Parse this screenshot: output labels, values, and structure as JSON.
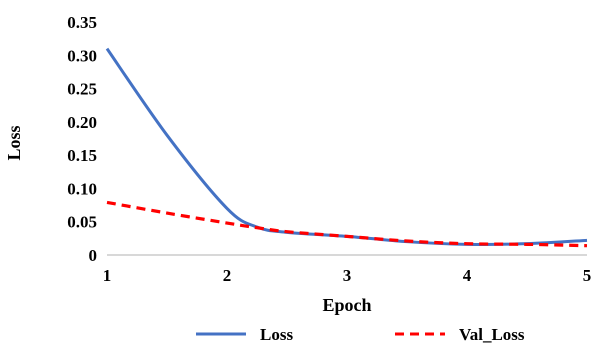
{
  "chart_data": {
    "type": "line",
    "title": "",
    "xlabel": "Epoch",
    "ylabel": "Loss",
    "x": [
      1,
      1.5,
      2,
      2.25,
      2.5,
      3,
      3.5,
      4,
      4.5,
      5
    ],
    "x_ticks": [
      "1",
      "2",
      "3",
      "4",
      "5"
    ],
    "y_ticks": [
      "0",
      "0.05",
      "0.10",
      "0.15",
      "0.20",
      "0.25",
      "0.30",
      "0.35"
    ],
    "xlim": [
      1,
      5
    ],
    "ylim": [
      0,
      0.35
    ],
    "grid": false,
    "legend_position": "bottom",
    "series": [
      {
        "name": "Loss",
        "color": "#4472C4",
        "style": "solid",
        "values": [
          0.31,
          0.18,
          0.07,
          0.042,
          0.034,
          0.028,
          0.02,
          0.016,
          0.017,
          0.022
        ]
      },
      {
        "name": "Val_Loss",
        "color": "#FF0000",
        "style": "dashed",
        "values": [
          0.079,
          0.063,
          0.048,
          0.041,
          0.035,
          0.028,
          0.021,
          0.017,
          0.016,
          0.014
        ]
      }
    ]
  }
}
